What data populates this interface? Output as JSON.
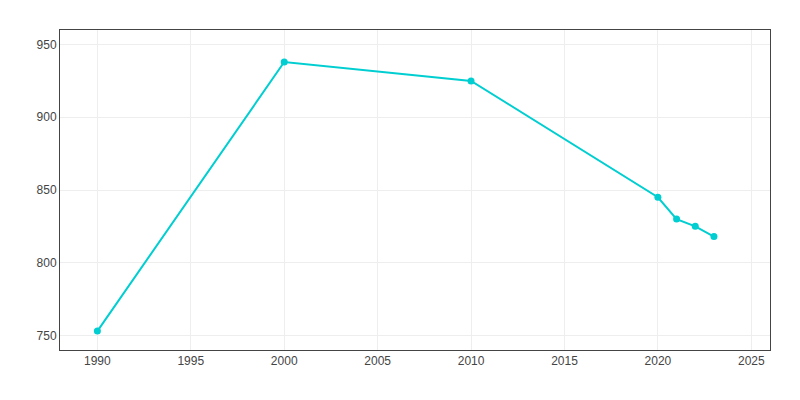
{
  "chart_data": {
    "type": "line",
    "x": [
      1990,
      2000,
      2010,
      2020,
      2021,
      2022,
      2023
    ],
    "values": [
      753,
      938,
      925,
      845,
      830,
      825,
      818
    ],
    "color": "#00CED1",
    "marker": "circle",
    "line_style": "solid",
    "xlim": [
      1988,
      2026
    ],
    "ylim": [
      740,
      960
    ],
    "xticks": [
      1990,
      1995,
      2000,
      2005,
      2010,
      2015,
      2020,
      2025
    ],
    "yticks": [
      750,
      800,
      850,
      900,
      950
    ],
    "grid": true
  }
}
